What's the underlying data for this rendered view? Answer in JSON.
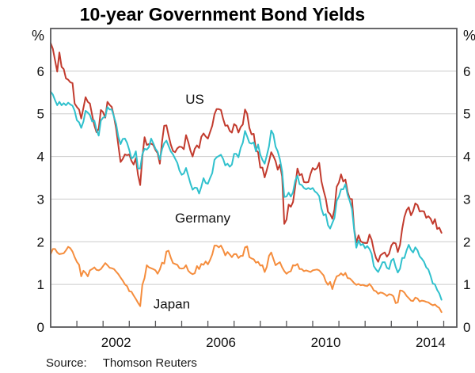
{
  "title": "10-year Government Bond Yields",
  "axis": {
    "unit_left": "%",
    "unit_right": "%",
    "y_tick_labels": [
      "0",
      "1",
      "2",
      "3",
      "4",
      "5",
      "6"
    ]
  },
  "source": {
    "label": "Source:",
    "value": "Thomson Reuters"
  },
  "colors": {
    "grid": "#cbcbcb",
    "axis": "#58585a",
    "text": "#111111",
    "us": "#c23b2e",
    "germany": "#30c1cd",
    "japan": "#f58d3d"
  },
  "chart_data": {
    "type": "line",
    "title": "10-year Government Bond Yields",
    "ylabel": "%",
    "ylim": [
      0,
      7
    ],
    "xlim": [
      2000,
      2015.5
    ],
    "grid": "horizontal-only",
    "grid_y": [
      1,
      2,
      3,
      4,
      5,
      6
    ],
    "year_ticks": [
      2001,
      2002,
      2003,
      2004,
      2005,
      2006,
      2007,
      2008,
      2009,
      2010,
      2011,
      2012,
      2013,
      2014,
      2015
    ],
    "x_tick_labels": [
      {
        "text": "2002",
        "year_center": 2002.5
      },
      {
        "text": "2006",
        "year_center": 2006.5
      },
      {
        "text": "2010",
        "year_center": 2010.5
      },
      {
        "text": "2014",
        "year_center": 2014.5
      }
    ],
    "x_unit": "monthly, Jan 2000 to Dec 2014",
    "legend_position": "inline-labels",
    "series": [
      {
        "name": "US",
        "color": "#c23b2e",
        "label": {
          "text": "US",
          "x": 2005.5,
          "y": 5.35
        },
        "values": [
          6.66,
          6.52,
          6.26,
          5.99,
          6.44,
          6.1,
          6.05,
          5.83,
          5.8,
          5.74,
          5.72,
          5.24,
          5.16,
          5.1,
          4.89,
          5.14,
          5.39,
          5.28,
          5.24,
          4.97,
          4.73,
          4.57,
          4.65,
          5.09,
          5.04,
          4.91,
          5.28,
          5.21,
          5.16,
          4.93,
          4.65,
          4.26,
          3.87,
          3.94,
          4.05,
          4.03,
          4.05,
          3.9,
          3.81,
          3.96,
          3.57,
          3.33,
          3.98,
          4.45,
          4.27,
          4.29,
          4.3,
          4.27,
          4.15,
          4.08,
          3.83,
          4.35,
          4.72,
          4.73,
          4.5,
          4.28,
          4.13,
          4.1,
          4.19,
          4.23,
          4.22,
          4.17,
          4.5,
          4.34,
          4.14,
          4.0,
          4.18,
          4.26,
          4.2,
          4.46,
          4.54,
          4.47,
          4.42,
          4.57,
          4.72,
          4.99,
          5.11,
          5.11,
          5.09,
          4.88,
          4.72,
          4.73,
          4.6,
          4.56,
          4.76,
          4.72,
          4.56,
          4.69,
          4.75,
          5.1,
          5.0,
          4.67,
          4.52,
          4.53,
          4.15,
          4.1,
          3.74,
          3.74,
          3.51,
          3.68,
          3.88,
          4.1,
          4.01,
          3.89,
          3.69,
          3.81,
          3.53,
          2.42,
          2.52,
          2.87,
          2.82,
          2.93,
          3.29,
          3.72,
          3.56,
          3.59,
          3.4,
          3.39,
          3.4,
          3.59,
          3.73,
          3.69,
          3.73,
          3.85,
          3.42,
          3.2,
          3.01,
          2.7,
          2.65,
          2.54,
          2.76,
          3.29,
          3.39,
          3.58,
          3.41,
          3.46,
          3.17,
          3.0,
          3.0,
          2.3,
          1.98,
          2.15,
          2.01,
          1.98,
          1.97,
          1.97,
          2.17,
          2.05,
          1.8,
          1.62,
          1.53,
          1.68,
          1.72,
          1.75,
          1.65,
          1.72,
          1.91,
          1.98,
          1.96,
          1.76,
          1.93,
          2.3,
          2.58,
          2.74,
          2.81,
          2.62,
          2.72,
          2.9,
          2.86,
          2.71,
          2.72,
          2.71,
          2.56,
          2.6,
          2.54,
          2.42,
          2.53,
          2.3,
          2.33,
          2.21
        ]
      },
      {
        "name": "Germany",
        "color": "#30c1cd",
        "label": {
          "text": "Germany",
          "x": 2005.8,
          "y": 2.56
        },
        "values": [
          5.52,
          5.45,
          5.32,
          5.2,
          5.28,
          5.2,
          5.25,
          5.2,
          5.26,
          5.22,
          5.19,
          5.07,
          4.85,
          4.8,
          4.67,
          4.82,
          5.07,
          5.03,
          4.97,
          4.82,
          4.84,
          4.62,
          4.49,
          4.84,
          4.91,
          4.93,
          5.16,
          5.1,
          5.1,
          4.93,
          4.76,
          4.46,
          4.29,
          4.41,
          4.42,
          4.32,
          4.15,
          3.95,
          3.99,
          4.12,
          3.72,
          3.72,
          4.05,
          4.18,
          4.16,
          4.22,
          4.42,
          4.31,
          4.18,
          4.11,
          3.93,
          4.17,
          4.31,
          4.37,
          4.25,
          4.12,
          4.05,
          3.95,
          3.85,
          3.67,
          3.57,
          3.6,
          3.73,
          3.55,
          3.37,
          3.22,
          3.27,
          3.26,
          3.13,
          3.29,
          3.49,
          3.38,
          3.36,
          3.49,
          3.61,
          3.92,
          3.98,
          4.01,
          4.04,
          3.94,
          3.79,
          3.83,
          3.76,
          3.81,
          4.06,
          4.06,
          3.98,
          4.2,
          4.32,
          4.6,
          4.47,
          4.32,
          4.3,
          4.33,
          4.12,
          4.28,
          4.04,
          3.92,
          3.83,
          4.02,
          4.24,
          4.61,
          4.52,
          4.23,
          4.12,
          3.93,
          3.65,
          3.05,
          3.06,
          3.15,
          3.06,
          3.16,
          3.43,
          3.55,
          3.35,
          3.33,
          3.26,
          3.23,
          3.26,
          3.23,
          3.26,
          3.18,
          3.14,
          3.07,
          2.78,
          2.62,
          2.65,
          2.39,
          2.31,
          2.44,
          2.56,
          2.96,
          3.06,
          3.23,
          3.23,
          3.35,
          3.1,
          2.95,
          2.77,
          2.26,
          1.86,
          2.03,
          1.92,
          1.95,
          1.85,
          1.9,
          1.83,
          1.72,
          1.43,
          1.35,
          1.29,
          1.4,
          1.52,
          1.52,
          1.39,
          1.36,
          1.56,
          1.6,
          1.41,
          1.28,
          1.37,
          1.62,
          1.62,
          1.8,
          1.93,
          1.81,
          1.75,
          1.87,
          1.8,
          1.66,
          1.6,
          1.53,
          1.4,
          1.35,
          1.2,
          1.02,
          1.0,
          0.87,
          0.79,
          0.64
        ]
      },
      {
        "name": "Japan",
        "color": "#f58d3d",
        "label": {
          "text": "Japan",
          "x": 2004.62,
          "y": 0.55
        },
        "values": [
          1.71,
          1.83,
          1.83,
          1.75,
          1.71,
          1.72,
          1.73,
          1.8,
          1.88,
          1.85,
          1.77,
          1.64,
          1.53,
          1.46,
          1.19,
          1.32,
          1.27,
          1.19,
          1.33,
          1.36,
          1.4,
          1.34,
          1.33,
          1.36,
          1.43,
          1.5,
          1.45,
          1.39,
          1.38,
          1.36,
          1.3,
          1.24,
          1.16,
          1.09,
          1.0,
          0.96,
          0.84,
          0.83,
          0.74,
          0.66,
          0.57,
          0.49,
          0.99,
          1.15,
          1.45,
          1.4,
          1.38,
          1.36,
          1.33,
          1.25,
          1.35,
          1.51,
          1.49,
          1.77,
          1.79,
          1.63,
          1.5,
          1.48,
          1.46,
          1.38,
          1.37,
          1.38,
          1.45,
          1.32,
          1.27,
          1.24,
          1.26,
          1.43,
          1.36,
          1.48,
          1.46,
          1.54,
          1.47,
          1.57,
          1.7,
          1.91,
          1.91,
          1.87,
          1.91,
          1.81,
          1.68,
          1.76,
          1.7,
          1.64,
          1.71,
          1.71,
          1.62,
          1.67,
          1.67,
          1.87,
          1.89,
          1.64,
          1.61,
          1.59,
          1.51,
          1.53,
          1.44,
          1.45,
          1.29,
          1.41,
          1.67,
          1.75,
          1.6,
          1.45,
          1.49,
          1.52,
          1.4,
          1.31,
          1.25,
          1.29,
          1.31,
          1.45,
          1.44,
          1.48,
          1.36,
          1.36,
          1.31,
          1.33,
          1.31,
          1.29,
          1.33,
          1.34,
          1.35,
          1.33,
          1.27,
          1.21,
          1.07,
          0.99,
          1.06,
          0.89,
          1.06,
          1.19,
          1.21,
          1.26,
          1.21,
          1.27,
          1.15,
          1.14,
          1.09,
          1.03,
          0.99,
          1.01,
          0.98,
          0.99,
          0.97,
          0.96,
          1.01,
          0.95,
          0.86,
          0.84,
          0.78,
          0.81,
          0.8,
          0.77,
          0.73,
          0.77,
          0.76,
          0.72,
          0.56,
          0.58,
          0.86,
          0.85,
          0.81,
          0.73,
          0.68,
          0.62,
          0.61,
          0.69,
          0.67,
          0.6,
          0.62,
          0.61,
          0.59,
          0.58,
          0.54,
          0.51,
          0.53,
          0.48,
          0.45,
          0.35
        ]
      }
    ]
  }
}
